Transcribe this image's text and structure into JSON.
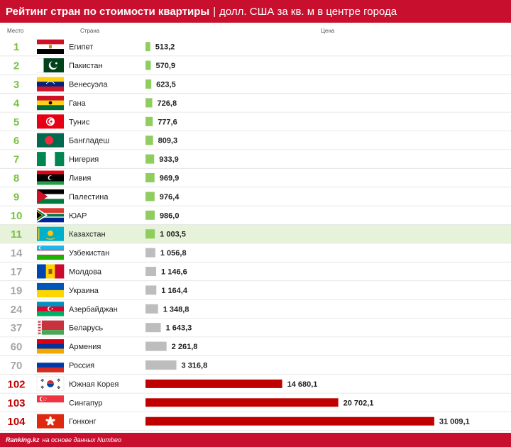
{
  "header": {
    "title_bold": "Рейтинг стран по стоимости квартиры",
    "separator": "|",
    "title_rest": "долл. США за кв. м в центре города"
  },
  "columns": {
    "rank": "Место",
    "country": "Страна",
    "price": "Цена"
  },
  "footer": {
    "brand": "Ranking.kz",
    "source": "на основе данных Numbeo"
  },
  "colors": {
    "header": "#c8102e",
    "green": "#8fcd5f",
    "gray": "#bdbdbd",
    "red": "#c00000",
    "highlight": "#e6f2da"
  },
  "chart_data": {
    "type": "bar",
    "xlim": [
      0,
      33000
    ],
    "highlight": "Казахстан",
    "rows": [
      {
        "rank": "1",
        "country": "Египет",
        "value": 513.2,
        "label": "513,2",
        "tier": "green",
        "flag": "egypt-flag"
      },
      {
        "rank": "2",
        "country": "Пакистан",
        "value": 570.9,
        "label": "570,9",
        "tier": "green",
        "flag": "pakistan-flag"
      },
      {
        "rank": "3",
        "country": "Венесуэла",
        "value": 623.5,
        "label": "623,5",
        "tier": "green",
        "flag": "venezuela-flag"
      },
      {
        "rank": "4",
        "country": "Гана",
        "value": 726.8,
        "label": "726,8",
        "tier": "green",
        "flag": "ghana-flag"
      },
      {
        "rank": "5",
        "country": "Тунис",
        "value": 777.6,
        "label": "777,6",
        "tier": "green",
        "flag": "tunisia-flag"
      },
      {
        "rank": "6",
        "country": "Бангладеш",
        "value": 809.3,
        "label": "809,3",
        "tier": "green",
        "flag": "bangladesh-flag"
      },
      {
        "rank": "7",
        "country": "Нигерия",
        "value": 933.9,
        "label": "933,9",
        "tier": "green",
        "flag": "nigeria-flag"
      },
      {
        "rank": "8",
        "country": "Ливия",
        "value": 969.9,
        "label": "969,9",
        "tier": "green",
        "flag": "libya-flag"
      },
      {
        "rank": "9",
        "country": "Палестина",
        "value": 976.4,
        "label": "976,4",
        "tier": "green",
        "flag": "palestine-flag"
      },
      {
        "rank": "10",
        "country": "ЮАР",
        "value": 986.0,
        "label": "986,0",
        "tier": "green",
        "flag": "south-africa-flag"
      },
      {
        "rank": "11",
        "country": "Казахстан",
        "value": 1003.5,
        "label": "1 003,5",
        "tier": "green",
        "flag": "kazakhstan-flag"
      },
      {
        "rank": "14",
        "country": "Узбекистан",
        "value": 1056.8,
        "label": "1 056,8",
        "tier": "gray",
        "flag": "uzbekistan-flag"
      },
      {
        "rank": "17",
        "country": "Молдова",
        "value": 1146.6,
        "label": "1 146,6",
        "tier": "gray",
        "flag": "moldova-flag"
      },
      {
        "rank": "19",
        "country": "Украина",
        "value": 1164.4,
        "label": "1 164,4",
        "tier": "gray",
        "flag": "ukraine-flag"
      },
      {
        "rank": "24",
        "country": "Азербайджан",
        "value": 1348.8,
        "label": "1 348,8",
        "tier": "gray",
        "flag": "azerbaijan-flag"
      },
      {
        "rank": "37",
        "country": "Беларусь",
        "value": 1643.3,
        "label": "1 643,3",
        "tier": "gray",
        "flag": "belarus-flag"
      },
      {
        "rank": "60",
        "country": "Армения",
        "value": 2261.8,
        "label": "2 261,8",
        "tier": "gray",
        "flag": "armenia-flag"
      },
      {
        "rank": "70",
        "country": "Россия",
        "value": 3316.8,
        "label": "3 316,8",
        "tier": "gray",
        "flag": "russia-flag"
      },
      {
        "rank": "102",
        "country": "Южная Корея",
        "value": 14680.1,
        "label": "14 680,1",
        "tier": "red",
        "flag": "south-korea-flag"
      },
      {
        "rank": "103",
        "country": "Сингапур",
        "value": 20702.1,
        "label": "20 702,1",
        "tier": "red",
        "flag": "singapore-flag"
      },
      {
        "rank": "104",
        "country": "Гонконг",
        "value": 31009.1,
        "label": "31 009,1",
        "tier": "red",
        "flag": "hong-kong-flag"
      }
    ]
  }
}
